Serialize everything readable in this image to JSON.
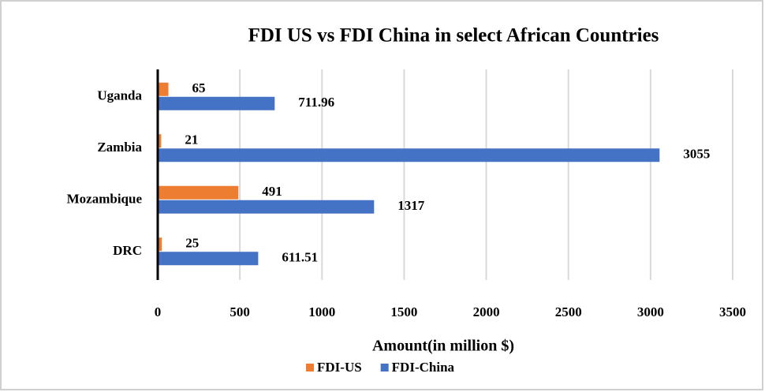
{
  "chart_data": {
    "type": "bar",
    "orientation": "horizontal",
    "title": "FDI US vs FDI China in select African Countries",
    "x_label": "Amount(in million $)",
    "categories": [
      "Uganda",
      "Zambia",
      "Mozambique",
      "DRC"
    ],
    "series": [
      {
        "name": "FDI-US",
        "color": "#ed7d31",
        "values": [
          65,
          21,
          491,
          25
        ]
      },
      {
        "name": "FDI-China",
        "color": "#4472c4",
        "values": [
          711.96,
          3055,
          1317,
          611.51
        ]
      }
    ],
    "xlim": [
      0,
      3500
    ],
    "xticks": [
      0,
      500,
      1000,
      1500,
      2000,
      2500,
      3000,
      3500
    ],
    "grid": true,
    "legend": "bottom"
  }
}
